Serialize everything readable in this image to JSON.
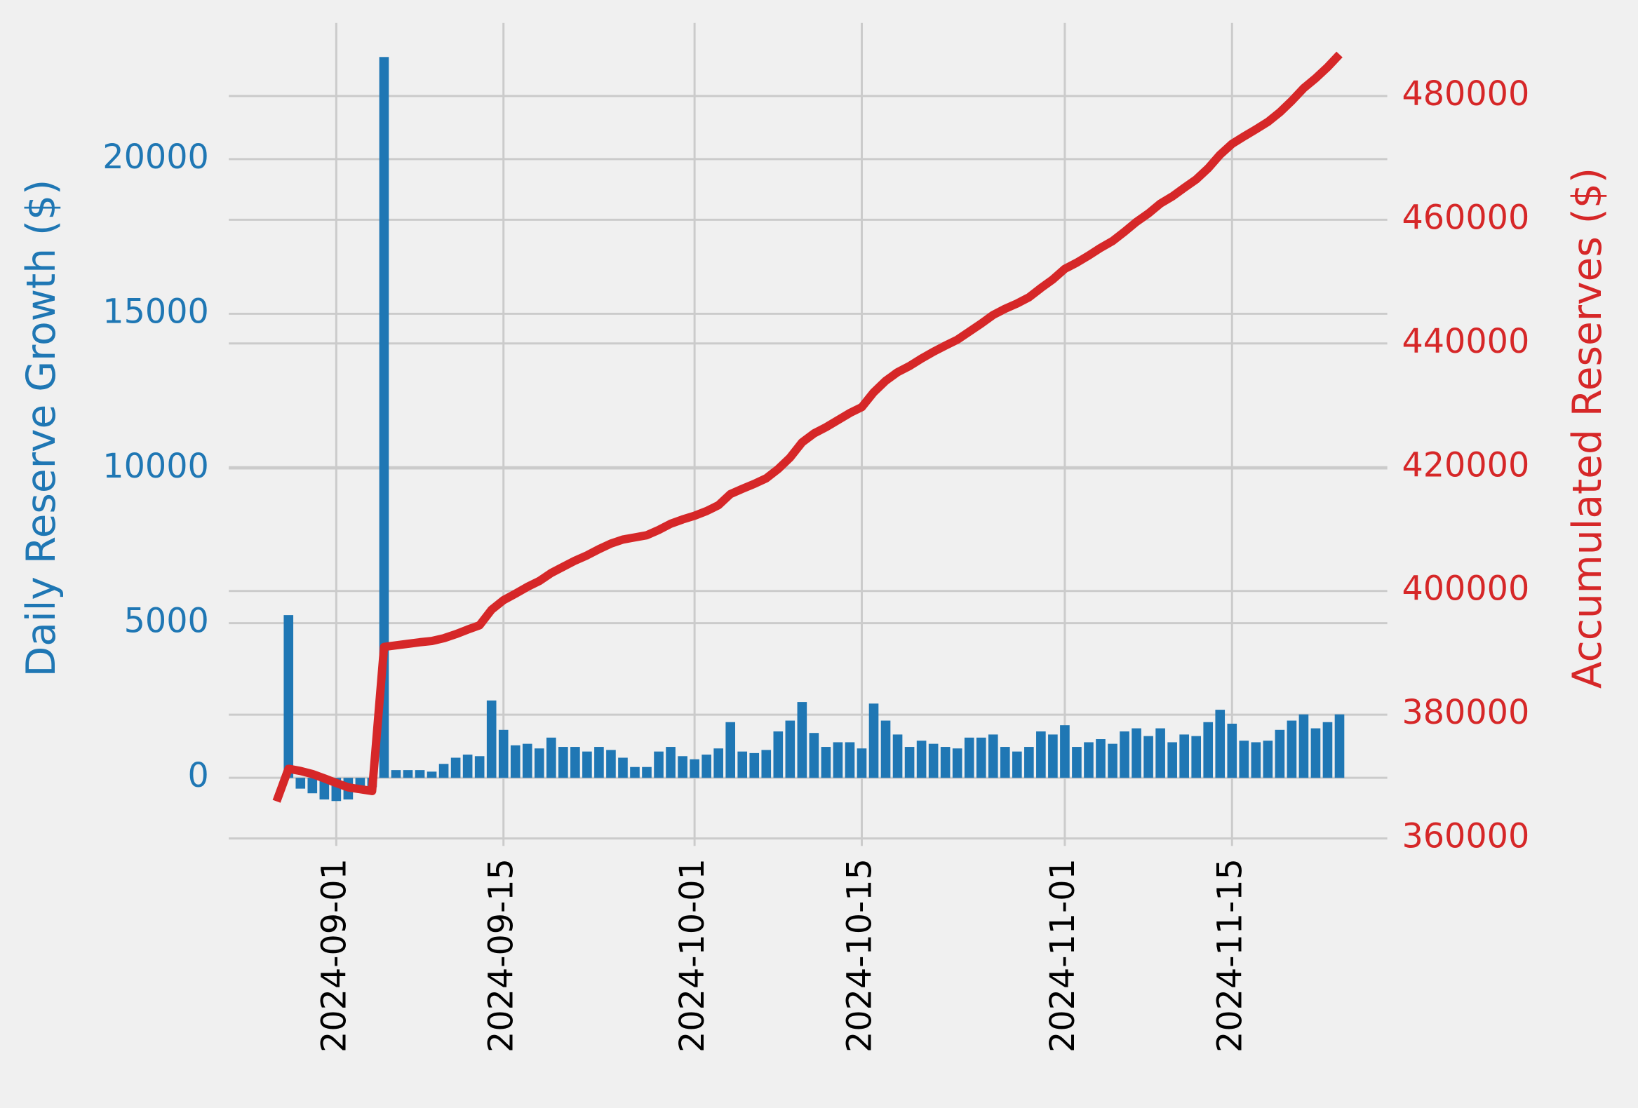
{
  "chart_data": {
    "type": "bar",
    "ylabel": "Daily Reserve Growth ($)",
    "y2label": "Accumulated Reserves ($)",
    "x": [
      "2024-08-27",
      "2024-08-28",
      "2024-08-29",
      "2024-08-30",
      "2024-08-31",
      "2024-09-01",
      "2024-09-02",
      "2024-09-03",
      "2024-09-04",
      "2024-09-05",
      "2024-09-06",
      "2024-09-07",
      "2024-09-08",
      "2024-09-09",
      "2024-09-10",
      "2024-09-11",
      "2024-09-12",
      "2024-09-13",
      "2024-09-14",
      "2024-09-15",
      "2024-09-16",
      "2024-09-17",
      "2024-09-18",
      "2024-09-19",
      "2024-09-20",
      "2024-09-21",
      "2024-09-22",
      "2024-09-23",
      "2024-09-24",
      "2024-09-25",
      "2024-09-26",
      "2024-09-27",
      "2024-09-28",
      "2024-09-29",
      "2024-09-30",
      "2024-10-01",
      "2024-10-02",
      "2024-10-03",
      "2024-10-04",
      "2024-10-05",
      "2024-10-06",
      "2024-10-07",
      "2024-10-08",
      "2024-10-09",
      "2024-10-10",
      "2024-10-11",
      "2024-10-12",
      "2024-10-13",
      "2024-10-14",
      "2024-10-15",
      "2024-10-16",
      "2024-10-17",
      "2024-10-18",
      "2024-10-19",
      "2024-10-20",
      "2024-10-21",
      "2024-10-22",
      "2024-10-23",
      "2024-10-24",
      "2024-10-25",
      "2024-10-26",
      "2024-10-27",
      "2024-10-28",
      "2024-10-29",
      "2024-10-30",
      "2024-10-31",
      "2024-11-01",
      "2024-11-02",
      "2024-11-03",
      "2024-11-04",
      "2024-11-05",
      "2024-11-06",
      "2024-11-07",
      "2024-11-08",
      "2024-11-09",
      "2024-11-10",
      "2024-11-11",
      "2024-11-12",
      "2024-11-13",
      "2024-11-14",
      "2024-11-15",
      "2024-11-16",
      "2024-11-17",
      "2024-11-18",
      "2024-11-19",
      "2024-11-20",
      "2024-11-21",
      "2024-11-22",
      "2024-11-23",
      "2024-11-24"
    ],
    "series": [
      {
        "type": "bar",
        "color": "#1f77b4",
        "values": [
          null,
          5260,
          -350,
          -500,
          -700,
          -750,
          -700,
          -300,
          -300,
          23300,
          250,
          250,
          250,
          200,
          450,
          650,
          750,
          700,
          2500,
          1550,
          1050,
          1100,
          950,
          1300,
          1000,
          1000,
          850,
          1000,
          900,
          650,
          350,
          350,
          850,
          1000,
          700,
          600,
          750,
          950,
          1800,
          850,
          800,
          900,
          1500,
          1850,
          2450,
          1450,
          1000,
          1150,
          1150,
          950,
          2400,
          1850,
          1400,
          1000,
          1200,
          1100,
          1000,
          950,
          1300,
          1300,
          1400,
          1000,
          850,
          1000,
          1500,
          1400,
          1700,
          1000,
          1150,
          1250,
          1100,
          1500,
          1600,
          1350,
          1600,
          1150,
          1400,
          1350,
          1800,
          2200,
          1750,
          1200,
          1150,
          1200,
          1550,
          1850,
          2050,
          1600,
          1800,
          2050
        ]
      },
      {
        "type": "line",
        "axis": "y2",
        "color": "#d62728",
        "values": [
          366000,
          371260,
          370910,
          370410,
          369710,
          368960,
          368260,
          367960,
          367660,
          390960,
          391210,
          391460,
          391710,
          391910,
          392360,
          393010,
          393760,
          394460,
          396960,
          398510,
          399560,
          400660,
          401610,
          402910,
          403910,
          404910,
          405760,
          406760,
          407660,
          408310,
          408660,
          409010,
          409860,
          410860,
          411560,
          412160,
          412910,
          413860,
          415660,
          416510,
          417310,
          418210,
          419710,
          421560,
          424010,
          425460,
          426460,
          427610,
          428760,
          429710,
          432110,
          433960,
          435360,
          436360,
          437560,
          438660,
          439660,
          440610,
          441910,
          443210,
          444610,
          445610,
          446460,
          447460,
          448960,
          450360,
          452060,
          453060,
          454210,
          455460,
          456560,
          458060,
          459660,
          461010,
          462610,
          463760,
          465160,
          466510,
          468310,
          470510,
          472260,
          473460,
          474610,
          475810,
          477360,
          479210,
          481260,
          482860,
          484660,
          486710
        ]
      }
    ],
    "xlim": [
      "2024-08-23",
      "2024-11-28"
    ],
    "xticks": [
      "2024-09-01",
      "2024-09-15",
      "2024-10-01",
      "2024-10-15",
      "2024-11-01",
      "2024-11-15"
    ],
    "ylim": [
      -2200,
      24400
    ],
    "yticks": [
      0,
      5000,
      10000,
      15000,
      20000
    ],
    "y2lim": [
      358800,
      491800
    ],
    "y2ticks": [
      360000,
      380000,
      400000,
      420000,
      440000,
      460000,
      480000
    ],
    "grid": true
  }
}
